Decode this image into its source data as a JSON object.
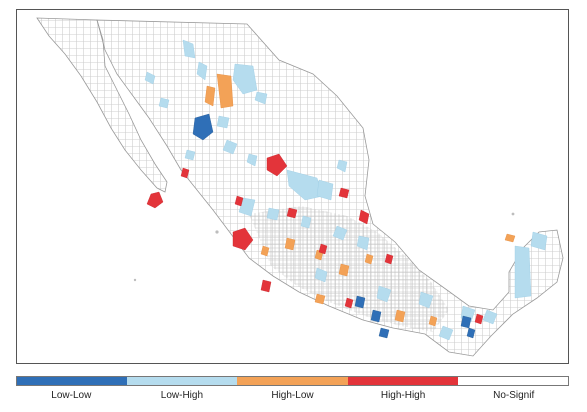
{
  "legend": {
    "items": [
      {
        "label": "Low-Low",
        "color": "#2f6fb7"
      },
      {
        "label": "Low-High",
        "color": "#b5dcee"
      },
      {
        "label": "High-Low",
        "color": "#f3a257"
      },
      {
        "label": "High-High",
        "color": "#e3343a"
      },
      {
        "label": "No-Signif",
        "color": "#ffffff"
      }
    ]
  },
  "colors": {
    "background": "#ffffff",
    "boundary": "#bdbdbd",
    "outline": "#9a9a9a"
  }
}
